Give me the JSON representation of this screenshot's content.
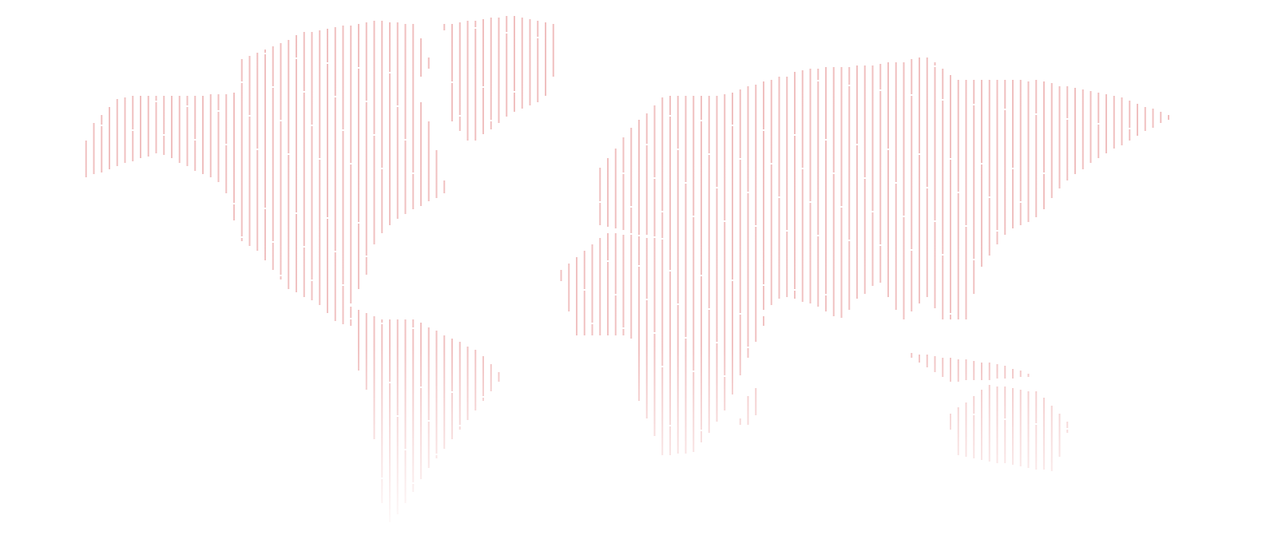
{
  "map": {
    "style": "dotted-line world map",
    "line_color": "#f0bfbf",
    "background": "#ffffff",
    "fade": "bottom"
  }
}
